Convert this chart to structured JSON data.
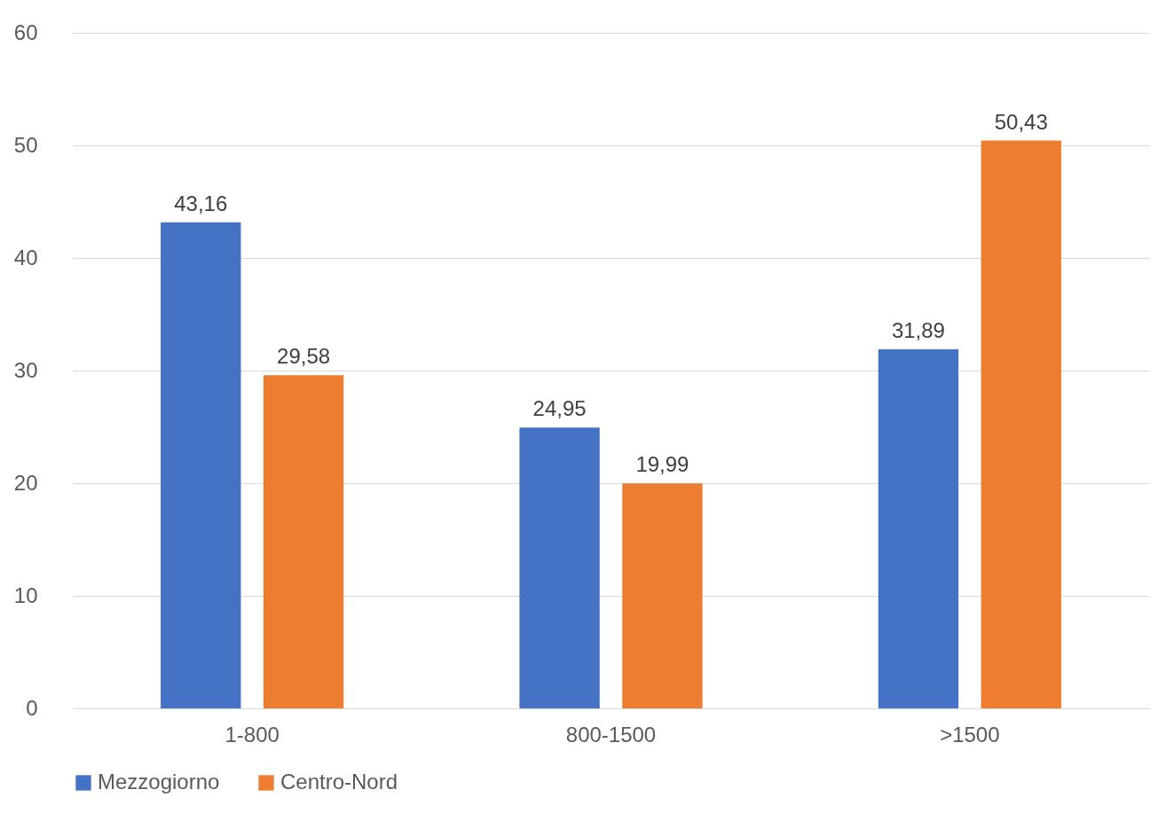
{
  "chart_data": {
    "type": "bar",
    "categories": [
      "1-800",
      "800-1500",
      ">1500"
    ],
    "series": [
      {
        "name": "Mezzogiorno",
        "color": "#4472c4",
        "values": [
          43.16,
          24.95,
          31.89
        ],
        "value_labels": [
          "43,16",
          "24,95",
          "31,89"
        ]
      },
      {
        "name": "Centro-Nord",
        "color": "#ed7d31",
        "values": [
          29.58,
          19.99,
          50.43
        ],
        "value_labels": [
          "29,58",
          "19,99",
          "50,43"
        ]
      }
    ],
    "ylim": [
      0,
      60
    ],
    "yticks": [
      0,
      10,
      20,
      30,
      40,
      50,
      60
    ],
    "grid": "y",
    "legend": "bottom"
  }
}
